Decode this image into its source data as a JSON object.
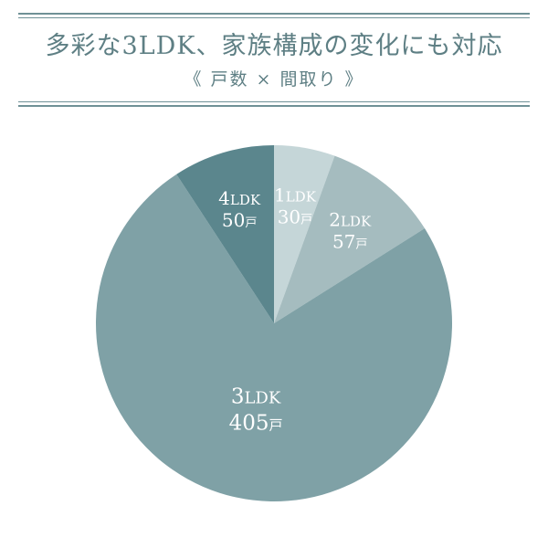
{
  "header": {
    "title": "多彩な3LDK、家族構成の変化にも対応",
    "subtitle": "《 戸数 × 間取り 》"
  },
  "chart_data": {
    "type": "pie",
    "title": "多彩な3LDK、家族構成の変化にも対応",
    "subtitle": "《 戸数 × 間取り 》",
    "unit": "戸",
    "slices": [
      {
        "label": "1LDK",
        "value": 30,
        "value_text": "30",
        "color": "#c5d6d8"
      },
      {
        "label": "2LDK",
        "value": 57,
        "value_text": "57",
        "color": "#a5bcbf"
      },
      {
        "label": "3LDK",
        "value": 405,
        "value_text": "405",
        "color": "#7fa1a6"
      },
      {
        "label": "4LDK",
        "value": 50,
        "value_text": "50",
        "color": "#5b868d"
      }
    ]
  }
}
